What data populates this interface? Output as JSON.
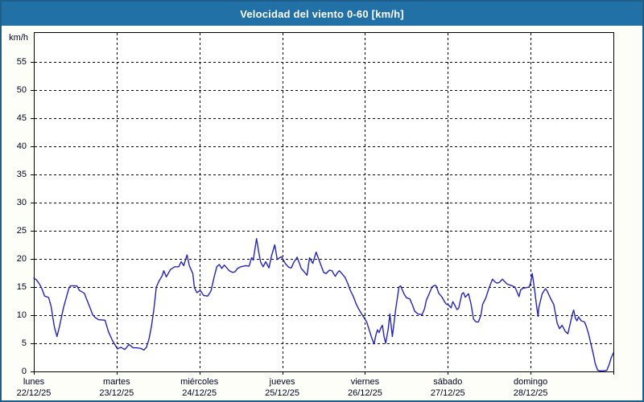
{
  "header": {
    "title": "Velocidad del viento 0-60 [km/h]"
  },
  "colors": {
    "titlebar_bg": "#2170a6",
    "window_border": "#1e5e88",
    "window_bg": "#fcfef7",
    "plot_bg": "#ffffff",
    "grid": "#000000",
    "line": "#2323bf",
    "label_text": "#000022",
    "title_text": "#ffffff"
  },
  "y_axis": {
    "unit_label": "km/h",
    "ticks": [
      0,
      5,
      10,
      15,
      20,
      25,
      30,
      35,
      40,
      45,
      50,
      55
    ]
  },
  "x_axis": {
    "days": [
      {
        "name": "lunes",
        "date": "22/12/25"
      },
      {
        "name": "martes",
        "date": "23/12/25"
      },
      {
        "name": "miércoles",
        "date": "24/12/25"
      },
      {
        "name": "jueves",
        "date": "25/12/25"
      },
      {
        "name": "viernes",
        "date": "26/12/25"
      },
      {
        "name": "sábado",
        "date": "27/12/25"
      },
      {
        "name": "domingo",
        "date": "28/12/25"
      }
    ]
  },
  "chart_data": {
    "type": "line",
    "title": "Velocidad del viento 0-60 [km/h]",
    "xlabel": "",
    "ylabel": "km/h",
    "ylim": [
      0,
      60
    ],
    "grid": true,
    "legend": "none",
    "x_unit": "days since lunes 22/12/25 00:00",
    "x_tick_labels": [
      "lunes 22/12/25",
      "martes 23/12/25",
      "miércoles 24/12/25",
      "jueves 25/12/25",
      "viernes 26/12/25",
      "sábado 27/12/25",
      "domingo 28/12/25"
    ],
    "series": [
      {
        "name": "Velocidad del viento",
        "color": "#2323bf",
        "points": [
          [
            0.0,
            16.6
          ],
          [
            0.03,
            16.3
          ],
          [
            0.07,
            15.5
          ],
          [
            0.1,
            14.6
          ],
          [
            0.13,
            13.4
          ],
          [
            0.17,
            13.2
          ],
          [
            0.18,
            13.1
          ],
          [
            0.21,
            11.5
          ],
          [
            0.23,
            9.5
          ],
          [
            0.25,
            7.8
          ],
          [
            0.28,
            6.2
          ],
          [
            0.31,
            8.0
          ],
          [
            0.34,
            10.1
          ],
          [
            0.36,
            11.4
          ],
          [
            0.39,
            13.0
          ],
          [
            0.42,
            14.6
          ],
          [
            0.44,
            15.2
          ],
          [
            0.52,
            15.2
          ],
          [
            0.55,
            14.4
          ],
          [
            0.61,
            13.9
          ],
          [
            0.65,
            12.4
          ],
          [
            0.68,
            11.3
          ],
          [
            0.71,
            10.1
          ],
          [
            0.74,
            9.6
          ],
          [
            0.78,
            9.2
          ],
          [
            0.86,
            9.1
          ],
          [
            0.9,
            7.1
          ],
          [
            0.95,
            5.5
          ],
          [
            0.99,
            4.5
          ],
          [
            1.01,
            4.0
          ],
          [
            1.05,
            4.3
          ],
          [
            1.1,
            3.9
          ],
          [
            1.15,
            4.8
          ],
          [
            1.2,
            4.2
          ],
          [
            1.24,
            4.2
          ],
          [
            1.29,
            4.1
          ],
          [
            1.33,
            3.8
          ],
          [
            1.36,
            4.3
          ],
          [
            1.39,
            5.7
          ],
          [
            1.42,
            8.0
          ],
          [
            1.45,
            11.0
          ],
          [
            1.48,
            15.0
          ],
          [
            1.51,
            16.0
          ],
          [
            1.55,
            17.0
          ],
          [
            1.57,
            17.9
          ],
          [
            1.6,
            16.8
          ],
          [
            1.65,
            18.1
          ],
          [
            1.7,
            18.6
          ],
          [
            1.75,
            18.6
          ],
          [
            1.78,
            19.5
          ],
          [
            1.81,
            18.8
          ],
          [
            1.85,
            20.7
          ],
          [
            1.88,
            18.7
          ],
          [
            1.92,
            17.4
          ],
          [
            1.94,
            14.9
          ],
          [
            1.97,
            14.0
          ],
          [
            2.01,
            14.4
          ],
          [
            2.05,
            13.5
          ],
          [
            2.1,
            13.4
          ],
          [
            2.14,
            14.3
          ],
          [
            2.18,
            16.9
          ],
          [
            2.21,
            18.6
          ],
          [
            2.24,
            19.0
          ],
          [
            2.27,
            18.3
          ],
          [
            2.3,
            18.9
          ],
          [
            2.33,
            18.4
          ],
          [
            2.36,
            17.9
          ],
          [
            2.4,
            17.6
          ],
          [
            2.43,
            17.7
          ],
          [
            2.46,
            18.3
          ],
          [
            2.5,
            18.6
          ],
          [
            2.56,
            18.8
          ],
          [
            2.6,
            18.7
          ],
          [
            2.63,
            20.2
          ],
          [
            2.65,
            19.8
          ],
          [
            2.69,
            23.6
          ],
          [
            2.72,
            20.9
          ],
          [
            2.74,
            19.4
          ],
          [
            2.77,
            18.6
          ],
          [
            2.8,
            19.5
          ],
          [
            2.84,
            18.4
          ],
          [
            2.87,
            20.5
          ],
          [
            2.91,
            22.5
          ],
          [
            2.94,
            19.9
          ],
          [
            2.97,
            20.2
          ],
          [
            2.99,
            20.4
          ],
          [
            3.01,
            19.9
          ],
          [
            3.04,
            19.1
          ],
          [
            3.08,
            18.5
          ],
          [
            3.11,
            18.4
          ],
          [
            3.14,
            19.4
          ],
          [
            3.18,
            20.3
          ],
          [
            3.23,
            18.3
          ],
          [
            3.26,
            17.8
          ],
          [
            3.3,
            17.1
          ],
          [
            3.33,
            20.2
          ],
          [
            3.37,
            19.2
          ],
          [
            3.41,
            21.2
          ],
          [
            3.44,
            20.0
          ],
          [
            3.5,
            17.6
          ],
          [
            3.53,
            17.4
          ],
          [
            3.57,
            18.0
          ],
          [
            3.6,
            17.9
          ],
          [
            3.64,
            16.9
          ],
          [
            3.67,
            17.6
          ],
          [
            3.69,
            17.9
          ],
          [
            3.72,
            17.4
          ],
          [
            3.76,
            16.7
          ],
          [
            3.79,
            15.7
          ],
          [
            3.82,
            14.5
          ],
          [
            3.86,
            13.3
          ],
          [
            3.89,
            12.1
          ],
          [
            3.92,
            11.2
          ],
          [
            3.96,
            10.2
          ],
          [
            3.99,
            9.5
          ],
          [
            4.02,
            8.8
          ],
          [
            4.05,
            7.4
          ],
          [
            4.08,
            6.0
          ],
          [
            4.11,
            4.9
          ],
          [
            4.13,
            6.4
          ],
          [
            4.15,
            7.4
          ],
          [
            4.17,
            6.9
          ],
          [
            4.19,
            7.7
          ],
          [
            4.21,
            8.2
          ],
          [
            4.23,
            6.2
          ],
          [
            4.25,
            5.0
          ],
          [
            4.28,
            7.5
          ],
          [
            4.3,
            10.2
          ],
          [
            4.33,
            6.2
          ],
          [
            4.37,
            11.0
          ],
          [
            4.41,
            15.0
          ],
          [
            4.43,
            15.2
          ],
          [
            4.47,
            13.8
          ],
          [
            4.5,
            13.1
          ],
          [
            4.54,
            12.9
          ],
          [
            4.57,
            11.9
          ],
          [
            4.6,
            10.7
          ],
          [
            4.64,
            10.2
          ],
          [
            4.69,
            10.1
          ],
          [
            4.72,
            11.2
          ],
          [
            4.74,
            12.6
          ],
          [
            4.78,
            14.0
          ],
          [
            4.81,
            15.0
          ],
          [
            4.84,
            15.3
          ],
          [
            4.86,
            15.2
          ],
          [
            4.89,
            13.9
          ],
          [
            4.93,
            13.2
          ],
          [
            4.96,
            12.4
          ],
          [
            4.98,
            12.0
          ],
          [
            5.01,
            11.8
          ],
          [
            5.04,
            11.3
          ],
          [
            5.06,
            12.4
          ],
          [
            5.08,
            11.9
          ],
          [
            5.11,
            11.0
          ],
          [
            5.13,
            11.2
          ],
          [
            5.17,
            13.8
          ],
          [
            5.19,
            14.0
          ],
          [
            5.21,
            13.2
          ],
          [
            5.23,
            13.5
          ],
          [
            5.25,
            13.8
          ],
          [
            5.28,
            12.0
          ],
          [
            5.31,
            9.3
          ],
          [
            5.34,
            8.8
          ],
          [
            5.37,
            8.8
          ],
          [
            5.4,
            10.0
          ],
          [
            5.42,
            11.9
          ],
          [
            5.46,
            13.1
          ],
          [
            5.49,
            14.5
          ],
          [
            5.52,
            15.7
          ],
          [
            5.54,
            16.4
          ],
          [
            5.57,
            15.9
          ],
          [
            5.59,
            15.7
          ],
          [
            5.62,
            15.8
          ],
          [
            5.66,
            16.4
          ],
          [
            5.69,
            15.9
          ],
          [
            5.72,
            15.5
          ],
          [
            5.76,
            15.3
          ],
          [
            5.78,
            15.2
          ],
          [
            5.81,
            15.0
          ],
          [
            5.84,
            14.0
          ],
          [
            5.86,
            13.3
          ],
          [
            5.88,
            14.5
          ],
          [
            5.91,
            14.8
          ],
          [
            5.95,
            14.9
          ],
          [
            5.98,
            15.0
          ],
          [
            6.0,
            15.7
          ],
          [
            6.02,
            17.4
          ],
          [
            6.05,
            14.3
          ],
          [
            6.07,
            11.9
          ],
          [
            6.09,
            9.8
          ],
          [
            6.1,
            11.4
          ],
          [
            6.14,
            13.8
          ],
          [
            6.17,
            14.5
          ],
          [
            6.18,
            14.7
          ],
          [
            6.2,
            14.3
          ],
          [
            6.24,
            13.0
          ],
          [
            6.28,
            11.9
          ],
          [
            6.32,
            8.6
          ],
          [
            6.35,
            7.6
          ],
          [
            6.38,
            8.2
          ],
          [
            6.42,
            7.1
          ],
          [
            6.45,
            6.7
          ],
          [
            6.48,
            8.6
          ],
          [
            6.51,
            10.5
          ],
          [
            6.52,
            10.9
          ],
          [
            6.54,
            9.5
          ],
          [
            6.56,
            9.0
          ],
          [
            6.58,
            9.7
          ],
          [
            6.61,
            9.0
          ],
          [
            6.65,
            8.8
          ],
          [
            6.67,
            8.1
          ],
          [
            6.7,
            6.7
          ],
          [
            6.73,
            4.8
          ],
          [
            6.76,
            2.9
          ],
          [
            6.78,
            1.4
          ],
          [
            6.81,
            0.2
          ],
          [
            6.84,
            0.1
          ],
          [
            6.88,
            0.1
          ],
          [
            6.92,
            0.2
          ],
          [
            6.95,
            1.3
          ],
          [
            6.97,
            2.3
          ],
          [
            7.0,
            3.3
          ]
        ]
      }
    ]
  }
}
